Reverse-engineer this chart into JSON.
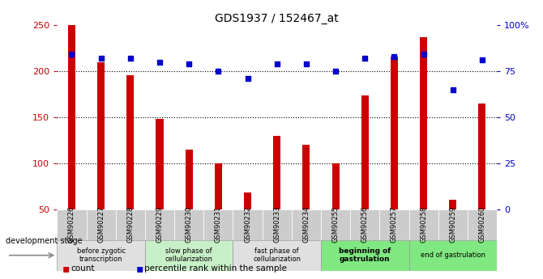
{
  "title": "GDS1937 / 152467_at",
  "samples": [
    "GSM90226",
    "GSM90227",
    "GSM90228",
    "GSM90229",
    "GSM90230",
    "GSM90231",
    "GSM90232",
    "GSM90233",
    "GSM90234",
    "GSM90255",
    "GSM90256",
    "GSM90257",
    "GSM90258",
    "GSM90259",
    "GSM90260"
  ],
  "counts": [
    250,
    210,
    196,
    148,
    115,
    100,
    68,
    130,
    120,
    100,
    174,
    216,
    237,
    60,
    165
  ],
  "percentiles": [
    84,
    82,
    82,
    80,
    79,
    75,
    71,
    79,
    79,
    75,
    82,
    83,
    84,
    65,
    81
  ],
  "bar_color": "#cc0000",
  "dot_color": "#0000cc",
  "ylim_left": [
    50,
    250
  ],
  "ylim_right": [
    0,
    100
  ],
  "yticks_left": [
    50,
    100,
    150,
    200,
    250
  ],
  "yticks_right": [
    0,
    25,
    50,
    75,
    100
  ],
  "yticklabels_right": [
    "0",
    "25",
    "50",
    "75",
    "100%"
  ],
  "grid_values": [
    100,
    150,
    200
  ],
  "stages": [
    {
      "label": "before zygotic\ntranscription",
      "start": 0,
      "end": 3,
      "color": "#e0e0e0",
      "bold": false
    },
    {
      "label": "slow phase of\ncellularization",
      "start": 3,
      "end": 6,
      "color": "#c8f0c8",
      "bold": false
    },
    {
      "label": "fast phase of\ncellularization",
      "start": 6,
      "end": 9,
      "color": "#e0e0e0",
      "bold": false
    },
    {
      "label": "beginning of\ngastrulation",
      "start": 9,
      "end": 12,
      "color": "#80e880",
      "bold": true
    },
    {
      "label": "end of gastrulation",
      "start": 12,
      "end": 15,
      "color": "#80e880",
      "bold": false
    }
  ],
  "dev_stage_label": "development stage",
  "legend_count_label": "count",
  "legend_pct_label": "percentile rank within the sample",
  "tick_bg_color": "#cccccc"
}
